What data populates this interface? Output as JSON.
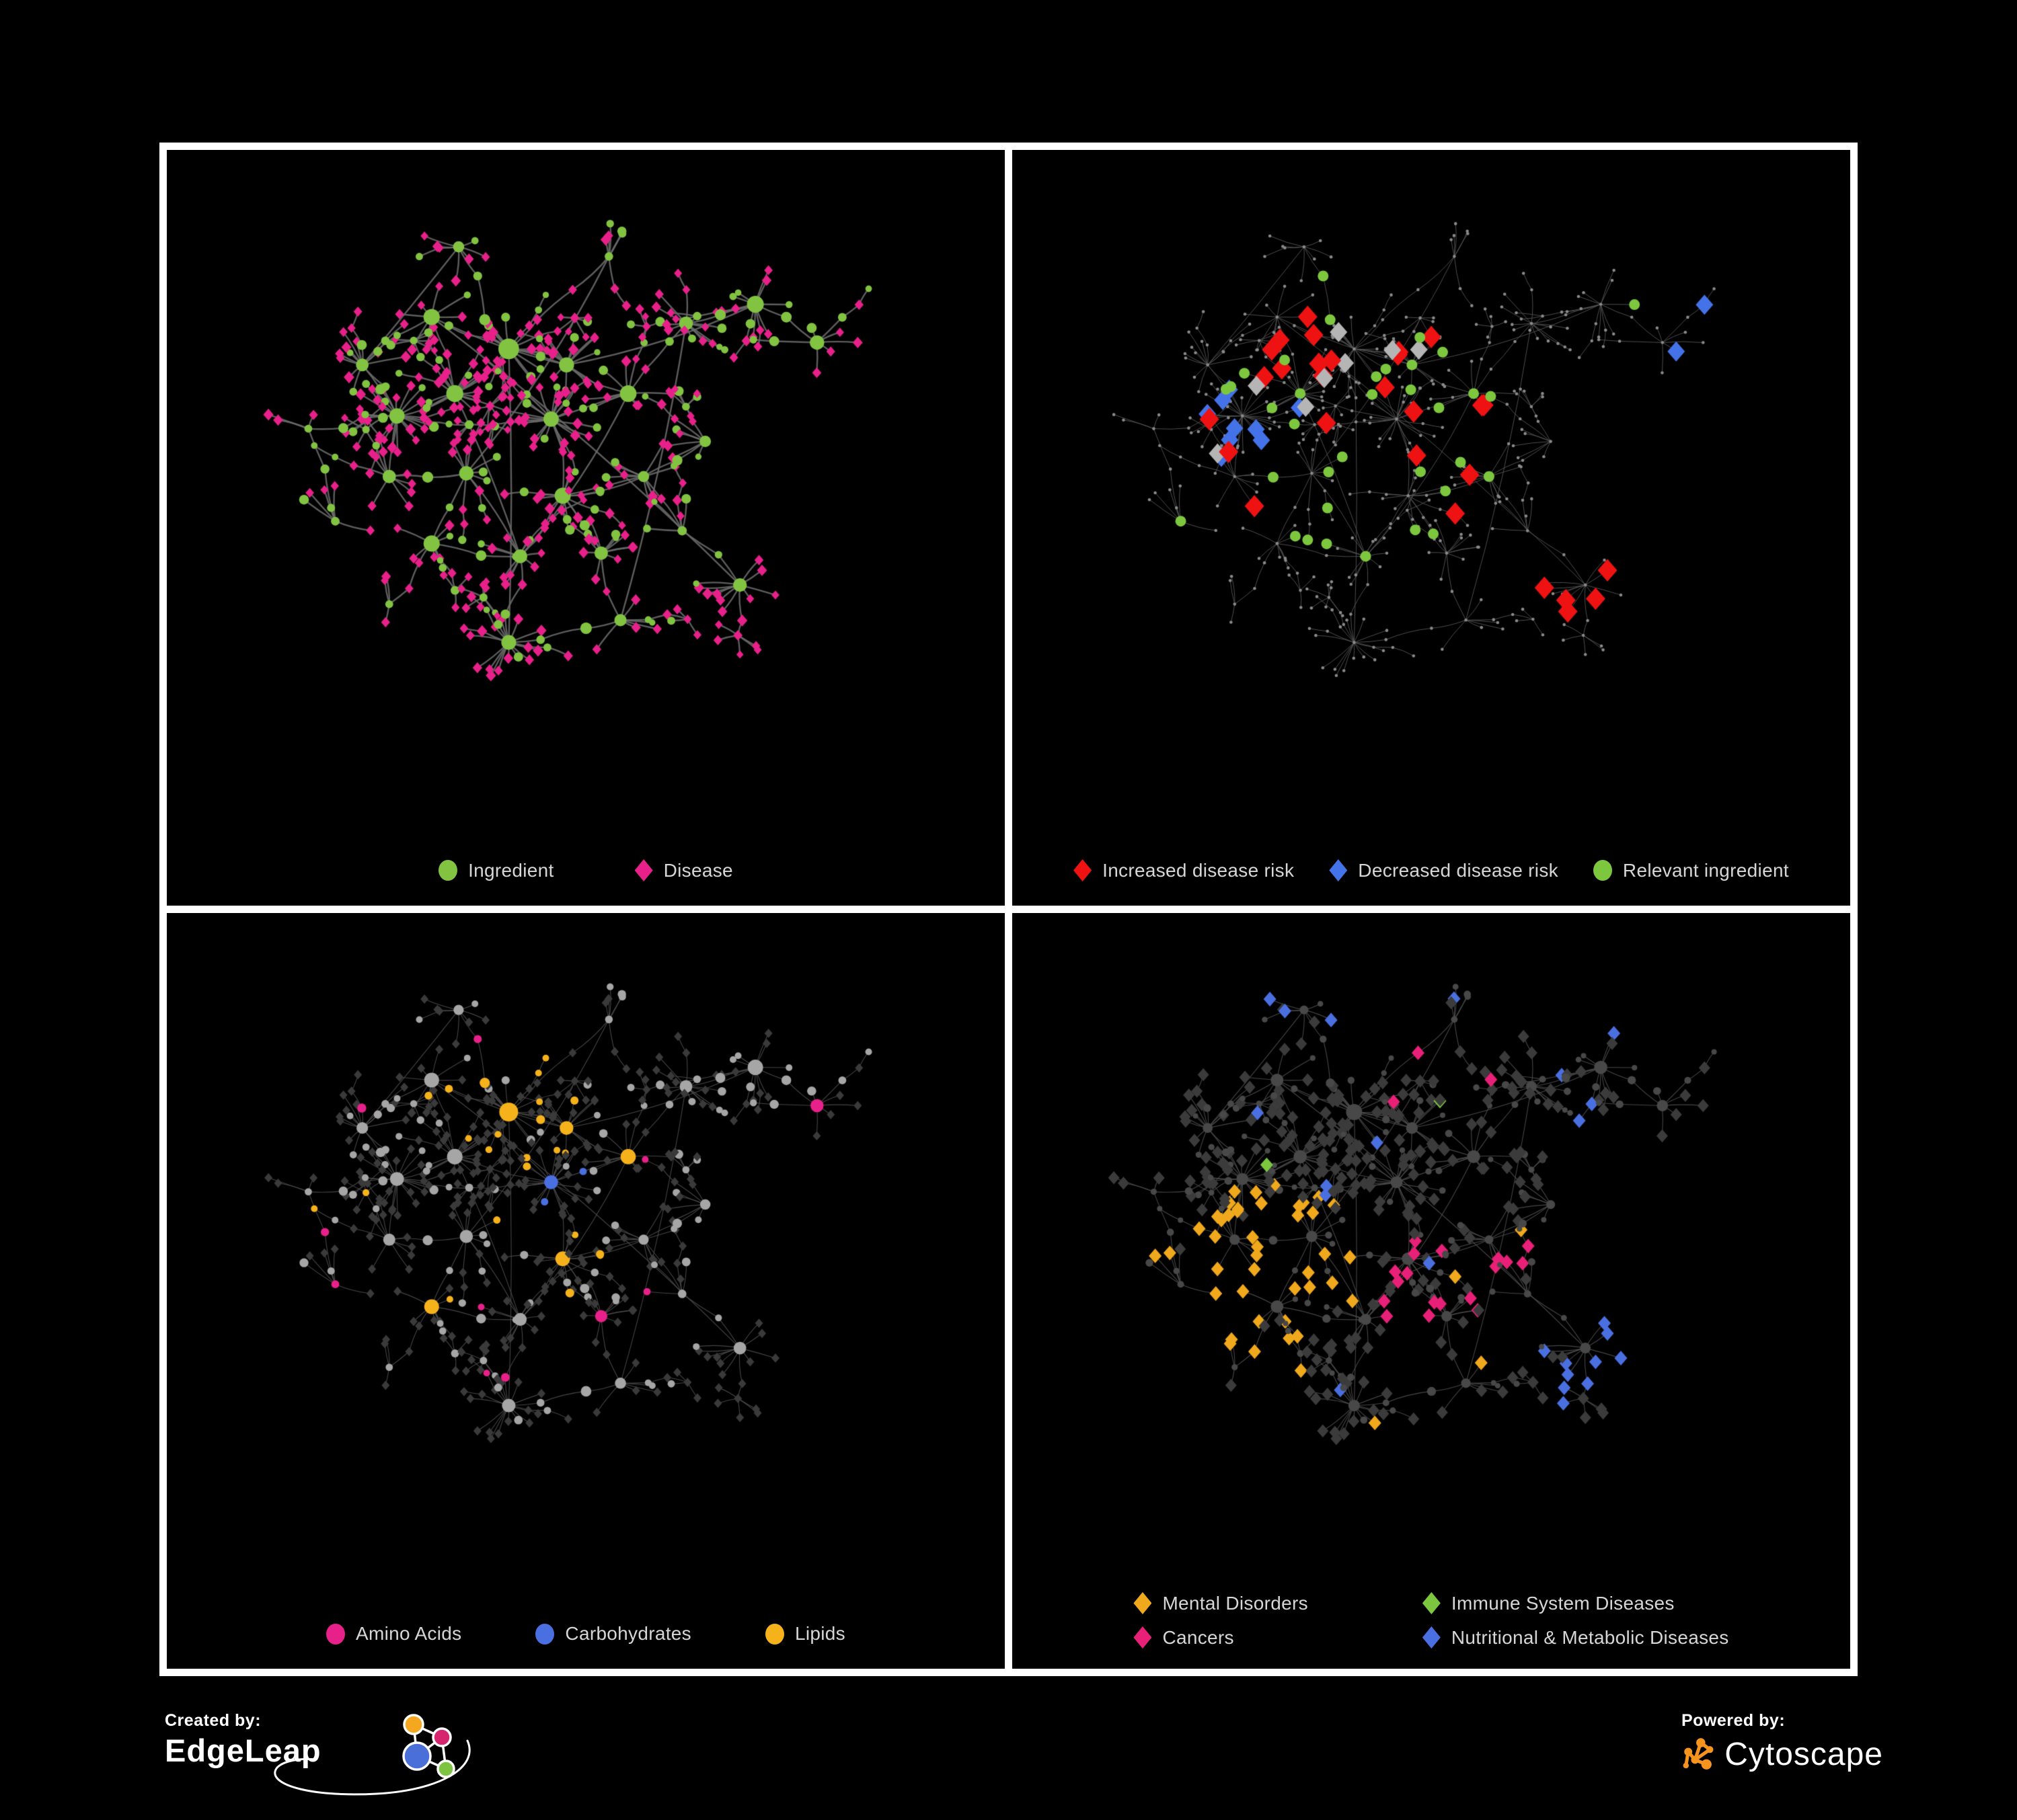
{
  "background": "#000000",
  "panels": [
    {
      "id": "ingredient-disease-network",
      "legend": [
        {
          "label": "Ingredient",
          "shape": "circle",
          "color": "#82c341"
        },
        {
          "label": "Disease",
          "shape": "diamond",
          "color": "#e8208a"
        }
      ]
    },
    {
      "id": "disease-risk-network",
      "legend": [
        {
          "label": "Increased disease risk",
          "shape": "diamond",
          "color": "#ee1212"
        },
        {
          "label": "Decreased disease risk",
          "shape": "diamond",
          "color": "#4472e8"
        },
        {
          "label": "Relevant ingredient",
          "shape": "circle",
          "color": "#7dc73f"
        }
      ]
    },
    {
      "id": "nutrient-class-network",
      "legend": [
        {
          "label": "Amino Acids",
          "shape": "circle",
          "color": "#e8208a"
        },
        {
          "label": "Carbohydrates",
          "shape": "circle",
          "color": "#4a6fe0"
        },
        {
          "label": "Lipids",
          "shape": "circle",
          "color": "#f6b21b"
        }
      ]
    },
    {
      "id": "disease-class-network",
      "legend": [
        {
          "label": "Mental Disorders",
          "shape": "diamond",
          "color": "#f0a81c"
        },
        {
          "label": "Immune System Diseases",
          "shape": "diamond",
          "color": "#7dc73f"
        },
        {
          "label": "Cancers",
          "shape": "diamond",
          "color": "#e82077"
        },
        {
          "label": "Nutritional & Metabolic Diseases",
          "shape": "diamond",
          "color": "#4a6fe0"
        }
      ]
    }
  ],
  "footer": {
    "created_by": "Created by:",
    "edgeleap": "EdgeLeap",
    "powered_by": "Powered by:",
    "cytoscape": "Cytoscape",
    "edgeleap_colors": {
      "orange": "#f5a81f",
      "pink": "#d6246e",
      "blue": "#4a6fd8",
      "green": "#7dc440"
    },
    "cytoscape_orange": "#f7941e"
  },
  "network": {
    "seed": 1337,
    "clusters": [
      [
        0.4,
        0.275,
        2
      ],
      [
        0.33,
        0.345,
        2
      ],
      [
        0.255,
        0.38,
        2
      ],
      [
        0.455,
        0.385,
        2
      ],
      [
        0.21,
        0.3,
        1
      ],
      [
        0.3,
        0.225,
        1
      ],
      [
        0.475,
        0.3,
        1
      ],
      [
        0.555,
        0.345,
        1
      ],
      [
        0.245,
        0.475,
        1
      ],
      [
        0.345,
        0.47,
        1
      ],
      [
        0.47,
        0.505,
        1
      ],
      [
        0.575,
        0.475,
        1
      ],
      [
        0.3,
        0.58,
        1
      ],
      [
        0.415,
        0.6,
        1
      ],
      [
        0.52,
        0.595,
        1
      ],
      [
        0.4,
        0.735,
        2
      ],
      [
        0.63,
        0.235,
        1
      ],
      [
        0.72,
        0.205,
        1
      ],
      [
        0.8,
        0.265,
        1
      ],
      [
        0.14,
        0.4,
        0
      ],
      [
        0.175,
        0.545,
        0
      ],
      [
        0.245,
        0.675,
        0
      ],
      [
        0.53,
        0.13,
        0
      ],
      [
        0.335,
        0.115,
        0
      ],
      [
        0.625,
        0.56,
        0
      ],
      [
        0.7,
        0.645,
        1
      ],
      [
        0.545,
        0.7,
        0
      ],
      [
        0.655,
        0.42,
        0
      ]
    ],
    "links": [
      [
        0,
        1,
        1
      ],
      [
        1,
        2,
        1
      ],
      [
        1,
        3,
        1
      ],
      [
        0,
        6,
        1
      ],
      [
        6,
        7,
        1
      ],
      [
        3,
        7,
        1
      ],
      [
        2,
        8,
        1
      ],
      [
        8,
        9,
        1
      ],
      [
        3,
        10,
        1
      ],
      [
        10,
        11,
        1
      ],
      [
        9,
        12,
        1
      ],
      [
        12,
        13,
        1
      ],
      [
        13,
        15,
        2
      ],
      [
        10,
        14,
        1
      ],
      [
        7,
        16,
        2
      ],
      [
        16,
        17,
        1
      ],
      [
        17,
        18,
        1
      ],
      [
        2,
        19,
        2
      ],
      [
        19,
        20,
        1
      ],
      [
        12,
        21,
        2
      ],
      [
        0,
        22,
        2
      ],
      [
        0,
        23,
        2
      ],
      [
        11,
        24,
        1
      ],
      [
        24,
        25,
        1
      ],
      [
        14,
        26,
        1
      ],
      [
        11,
        27,
        1
      ],
      [
        15,
        26,
        2
      ],
      [
        5,
        1,
        1
      ],
      [
        4,
        2,
        1
      ],
      [
        4,
        5,
        1
      ]
    ],
    "panel_styles": {
      "overview": {
        "edge": "#6a6a6a",
        "edge_width": 2.4,
        "ingredient": "#82c341",
        "disease": "#e8208a"
      },
      "risk": {
        "edge": "#585858",
        "edge_width": 1.0,
        "base": "#8a8a8a",
        "increased": "#ee1212",
        "decreased": "#4472e8",
        "unchanged": "#b5b5b5",
        "relevant": "#7dc73f"
      },
      "nutrients": {
        "edge": "#4e4e4e",
        "edge_width": 1.1,
        "ingredient": "#a6a6a6",
        "disease": "#3a3a3a",
        "amino": "#e8208a",
        "carb": "#4a6fe0",
        "lipid": "#f6b21b"
      },
      "diseases": {
        "edge": "#505050",
        "edge_width": 1.1,
        "ingredient": "#484848",
        "disease": "#3b3b3b",
        "mental": "#f0a81c",
        "cancer": "#e82077",
        "immune": "#7dc73f",
        "nutritional": "#4a6fe0"
      }
    }
  }
}
